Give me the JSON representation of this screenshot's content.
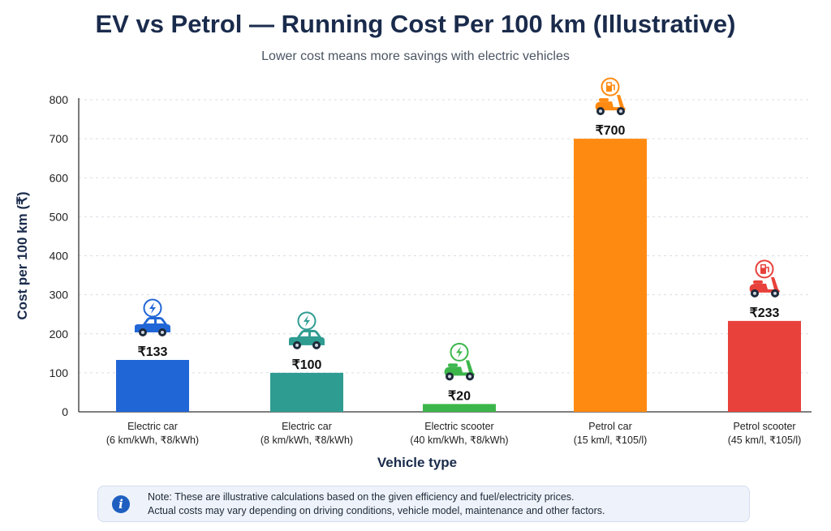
{
  "chart_data": {
    "type": "bar",
    "title": "EV vs Petrol — Running Cost Per 100 km (Illustrative)",
    "subtitle": "Lower cost means more savings with electric vehicles",
    "xlabel": "Vehicle type",
    "ylabel": "Cost per 100 km (₹)",
    "ylim": [
      0,
      800
    ],
    "yticks": [
      0,
      100,
      200,
      300,
      400,
      500,
      600,
      700,
      800
    ],
    "grid": true,
    "categories": [
      [
        "Electric car",
        "(6 km/kWh, ₹8/kWh)"
      ],
      [
        "Electric car",
        "(8 km/kWh, ₹8/kWh)"
      ],
      [
        "Electric scooter",
        "(40 km/kWh, ₹8/kWh)"
      ],
      [
        "Petrol car",
        "(15 km/l, ₹105/l)"
      ],
      [
        "Petrol scooter",
        "(45 km/l, ₹105/l)"
      ]
    ],
    "values": [
      133,
      100,
      20,
      700,
      233
    ],
    "data_labels": [
      "₹133",
      "₹100",
      "₹20",
      "₹700",
      "₹233"
    ],
    "colors": [
      "#2166d6",
      "#2f9c92",
      "#3cb64b",
      "#ff8a12",
      "#e8413b"
    ],
    "icons": [
      [
        "lightning-badge-icon",
        "car-icon"
      ],
      [
        "lightning-badge-icon",
        "car-icon"
      ],
      [
        "lightning-badge-icon",
        "scooter-icon"
      ],
      [
        "fuel-pump-badge-icon",
        "scooter-icon"
      ],
      [
        "fuel-pump-badge-icon",
        "scooter-icon"
      ]
    ]
  },
  "note": {
    "icon": "info-icon",
    "line1": "Note: These are illustrative calculations based on the given efficiency and fuel/electricity prices.",
    "line2": "Actual costs may vary depending on driving conditions, vehicle model, maintenance and other factors."
  }
}
